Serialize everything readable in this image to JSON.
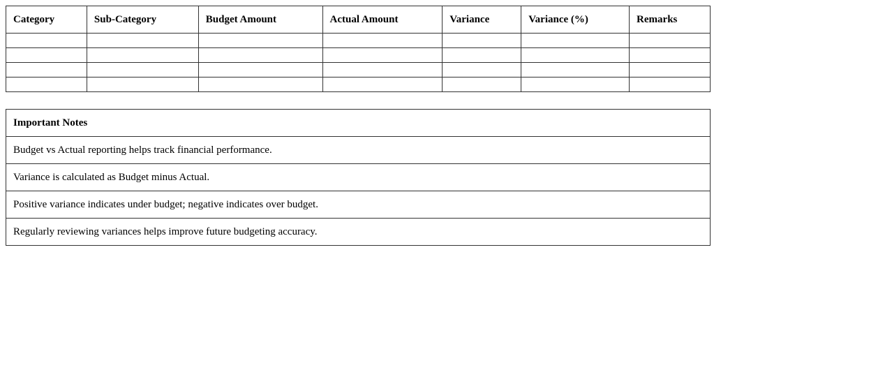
{
  "budget_table": {
    "headers": [
      "Category",
      "Sub-Category",
      "Budget Amount",
      "Actual Amount",
      "Variance",
      "Variance (%)",
      "Remarks"
    ],
    "rows": [
      [
        "",
        "",
        "",
        "",
        "",
        "",
        ""
      ],
      [
        "",
        "",
        "",
        "",
        "",
        "",
        ""
      ],
      [
        "",
        "",
        "",
        "",
        "",
        "",
        ""
      ],
      [
        "",
        "",
        "",
        "",
        "",
        "",
        ""
      ]
    ]
  },
  "notes": {
    "title": "Important Notes",
    "items": [
      "Budget vs Actual reporting helps track financial performance.",
      "Variance is calculated as Budget minus Actual.",
      "Positive variance indicates under budget; negative indicates over budget.",
      "Regularly reviewing variances helps improve future budgeting accuracy."
    ]
  }
}
